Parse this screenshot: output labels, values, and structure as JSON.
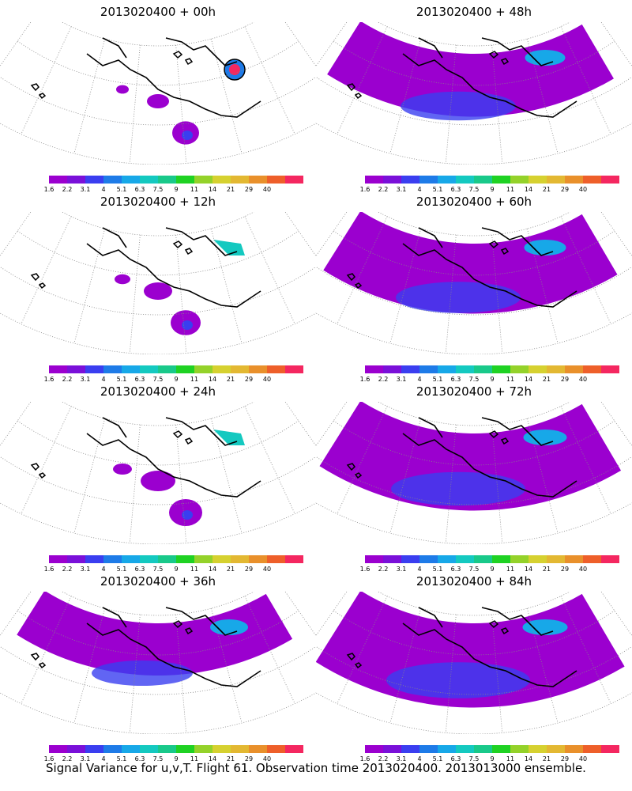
{
  "panels": [
    {
      "title": "2013020400 + 00h",
      "intensity": 0.05
    },
    {
      "title": "2013020400 + 48h",
      "intensity": 0.55
    },
    {
      "title": "2013020400 + 12h",
      "intensity": 0.15
    },
    {
      "title": "2013020400 + 60h",
      "intensity": 0.65
    },
    {
      "title": "2013020400 + 24h",
      "intensity": 0.25
    },
    {
      "title": "2013020400 + 72h",
      "intensity": 0.75
    },
    {
      "title": "2013020400 + 36h",
      "intensity": 0.4
    },
    {
      "title": "2013020400 + 84h",
      "intensity": 0.85
    }
  ],
  "colorbar": {
    "colors": [
      "#9b00cf",
      "#7a10d9",
      "#3a3ef0",
      "#1e7be8",
      "#17a8e8",
      "#14c9c0",
      "#19c98a",
      "#1fd223",
      "#94d22a",
      "#d6d130",
      "#e3b832",
      "#e9902b",
      "#ee5f2a",
      "#f42760"
    ],
    "labels": [
      "1.6",
      "2.2",
      "3.1",
      "4",
      "5.1",
      "6.3",
      "7.5",
      "9",
      "11",
      "14",
      "21",
      "29",
      "40"
    ]
  },
  "caption": "Signal Variance for u,v,T. Flight 61. Observation time 2013020400. 2013013000 ensemble."
}
